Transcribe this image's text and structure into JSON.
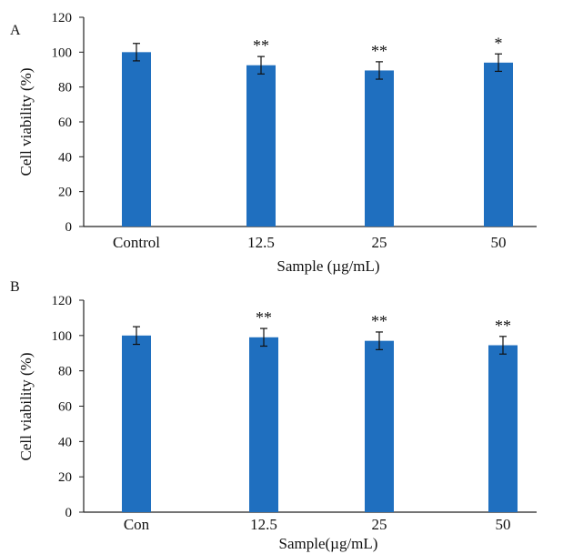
{
  "chart_data": [
    {
      "panel_label": "A",
      "type": "bar",
      "categories": [
        "Control",
        "12.5",
        "25",
        "50"
      ],
      "values": [
        100,
        92.5,
        89.5,
        94
      ],
      "errors": [
        5,
        5,
        5,
        5
      ],
      "annotations": [
        "",
        "**",
        "**",
        "*"
      ],
      "ylim": [
        0,
        120
      ],
      "yticks": [
        0,
        20,
        40,
        60,
        80,
        100,
        120
      ],
      "ylabel": "Cell viability (%)",
      "xlabel": "Sample (µg/mL)",
      "color": "#1f6fbf",
      "grid": false,
      "legend": "none"
    },
    {
      "panel_label": "B",
      "type": "bar",
      "categories": [
        "Con",
        "12.5",
        "25",
        "50"
      ],
      "values": [
        100,
        99,
        97,
        94.5
      ],
      "errors": [
        5,
        5,
        5,
        5
      ],
      "annotations": [
        "",
        "**",
        "**",
        "**"
      ],
      "ylim": [
        0,
        120
      ],
      "yticks": [
        0,
        20,
        40,
        60,
        80,
        100,
        120
      ],
      "ylabel": "Cell viability (%)",
      "xlabel": "Sample(µg/mL)",
      "color": "#1f6fbf",
      "grid": false,
      "legend": "none"
    }
  ]
}
